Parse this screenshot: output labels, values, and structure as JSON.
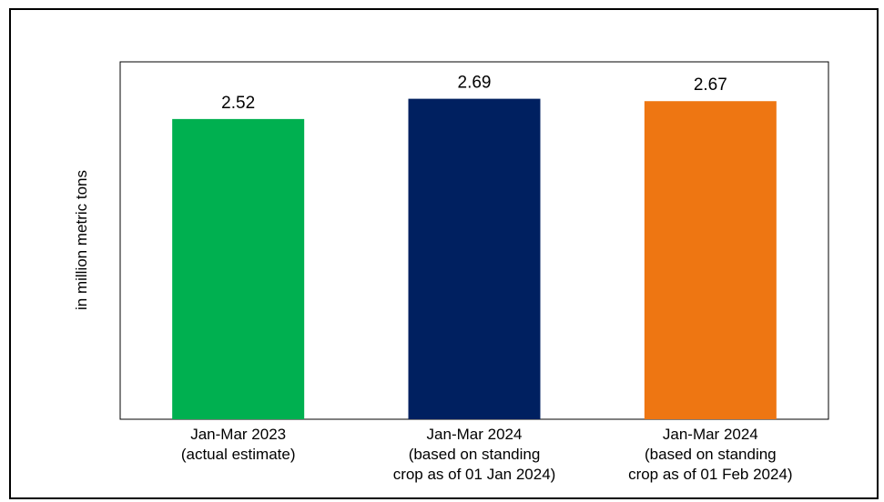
{
  "chart_data": {
    "type": "bar",
    "title": "",
    "xlabel": "",
    "ylabel": "in million metric tons",
    "ylim": [
      0,
      3.0
    ],
    "grid": false,
    "legend": "none",
    "categories": [
      [
        "Jan-Mar 2023",
        "(actual estimate)"
      ],
      [
        "Jan-Mar 2024",
        "(based on standing",
        "crop as of 01 Jan 2024)"
      ],
      [
        "Jan-Mar 2024",
        "(based on standing",
        "crop as of 01 Feb 2024)"
      ]
    ],
    "values": [
      2.52,
      2.69,
      2.67
    ],
    "value_labels": [
      "2.52",
      "2.69",
      "2.67"
    ],
    "colors": [
      "#00B050",
      "#002060",
      "#EE7612"
    ]
  }
}
